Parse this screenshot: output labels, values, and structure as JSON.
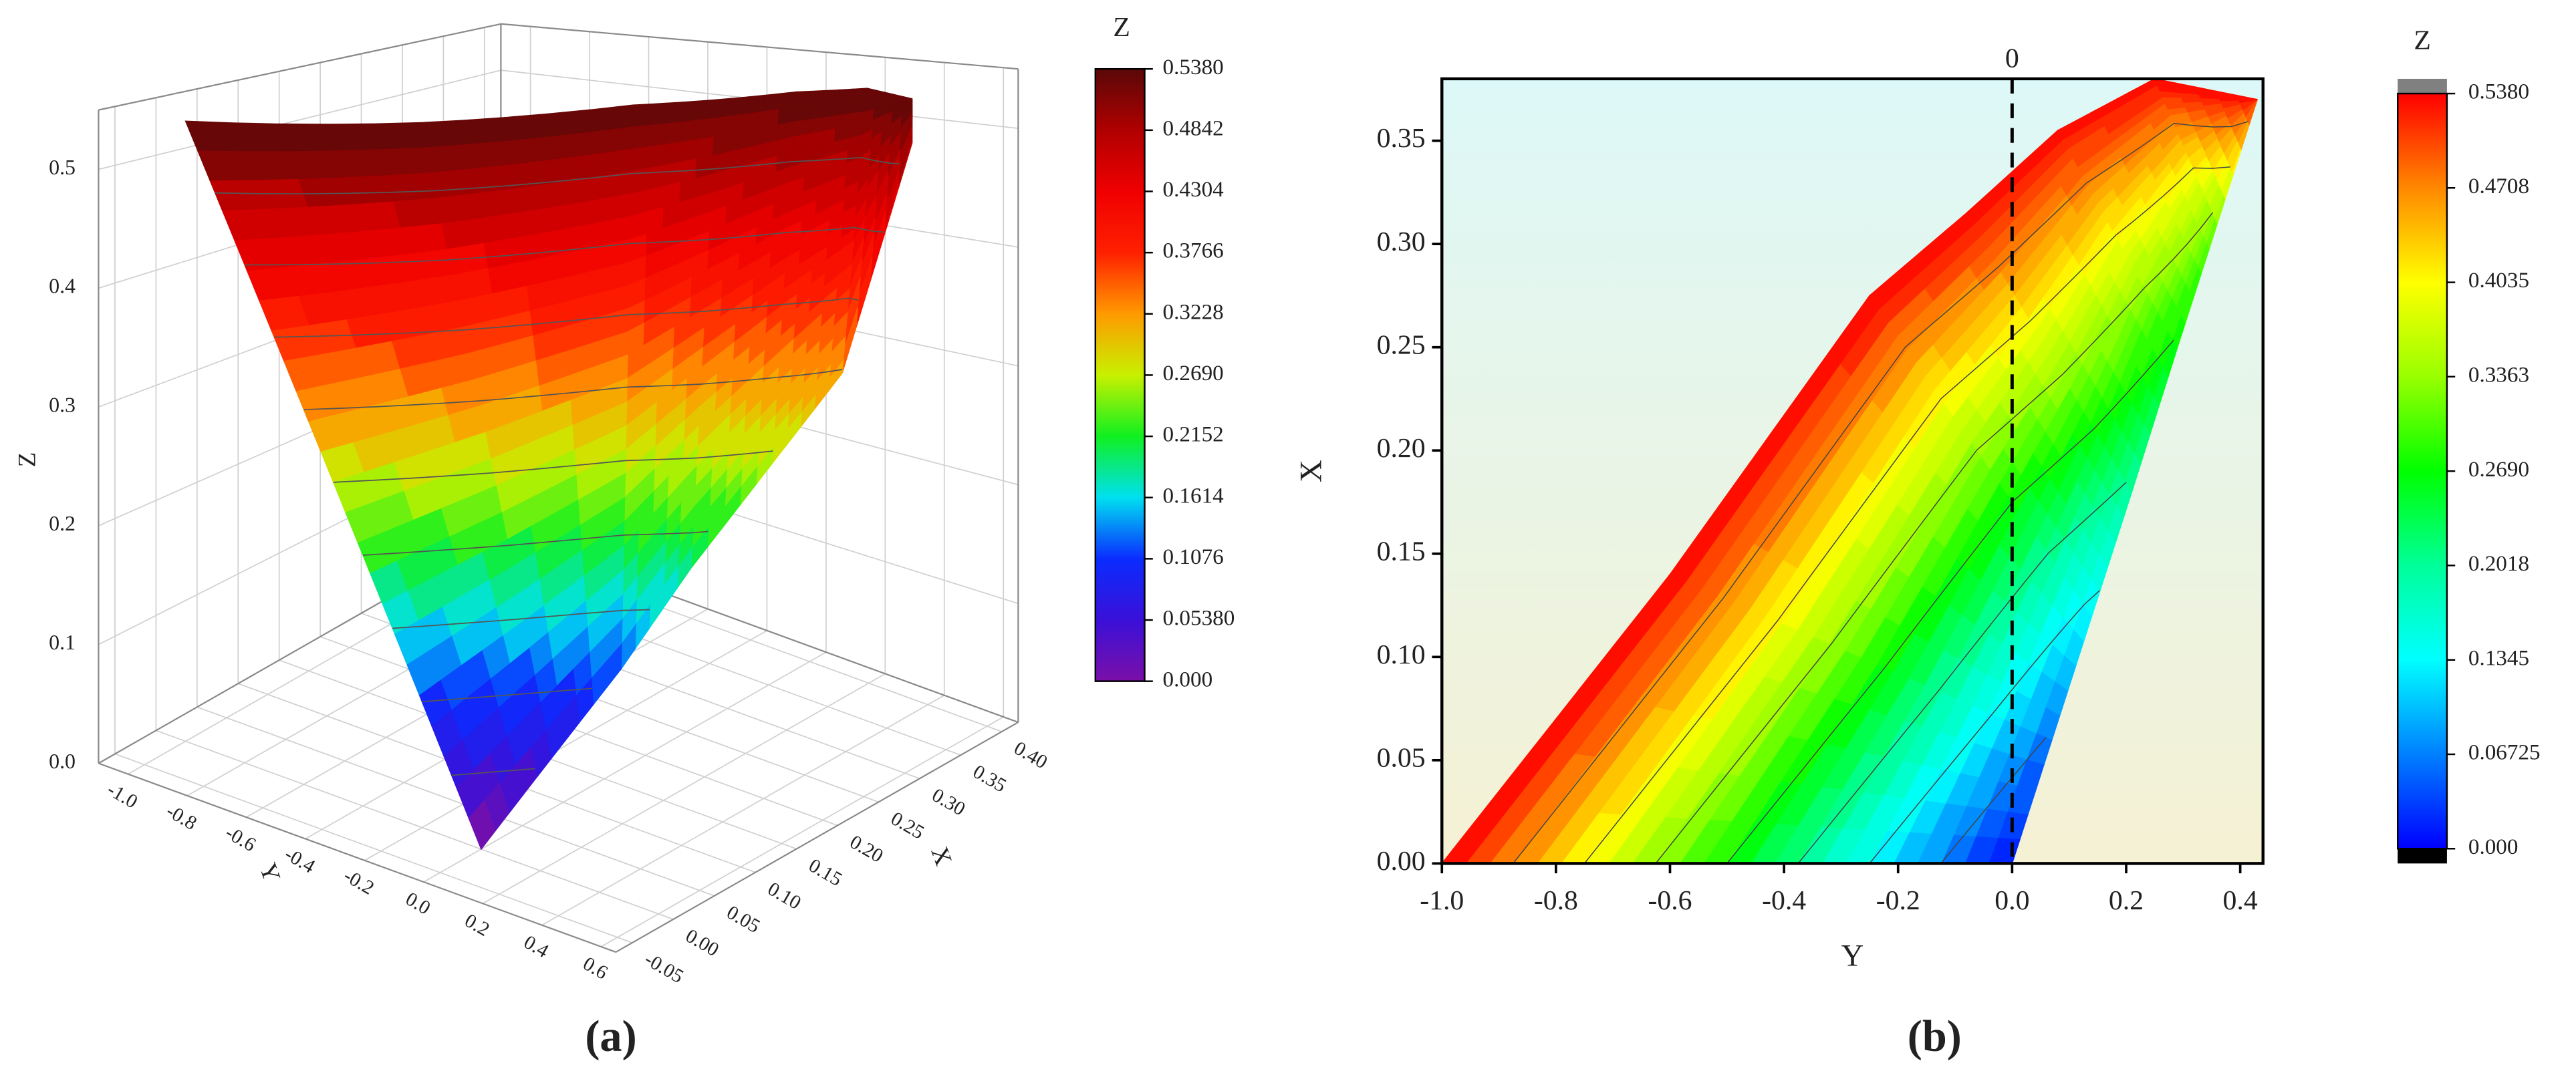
{
  "chart_data": [
    {
      "type": "surface3d",
      "panel_label": "(a)",
      "Y_axis": {
        "label": "Y",
        "lim": [
          -1.1,
          0.65
        ],
        "ticks": [
          {
            "value": -1.0,
            "label": "-1.0"
          },
          -0.8,
          -0.6,
          -0.4,
          -0.2,
          {
            "value": 0.0,
            "label": "0.0"
          },
          0.2,
          0.4,
          0.6
        ]
      },
      "X_axis": {
        "label": "X",
        "lim": [
          -0.07,
          0.42
        ],
        "ticks": [
          -0.05,
          {
            "value": 0.0,
            "label": "0.00"
          },
          0.05,
          {
            "value": 0.1,
            "label": "0.10"
          },
          0.15,
          {
            "value": 0.2,
            "label": "0.20"
          },
          0.25,
          {
            "value": 0.3,
            "label": "0.30"
          },
          0.35,
          {
            "value": 0.4,
            "label": "0.40"
          }
        ]
      },
      "Z_axis": {
        "label": "Z",
        "lim": [
          0,
          0.55
        ],
        "ticks": [
          {
            "value": 0.0,
            "label": "0.0"
          },
          0.1,
          0.2,
          0.3,
          0.4,
          0.5
        ]
      },
      "colorbar": {
        "title": "Z",
        "lim": [
          0,
          0.538
        ],
        "ticks": [
          {
            "value": 0,
            "label": "0.000"
          },
          {
            "value": 0.0538,
            "label": "0.05380"
          },
          0.1076,
          0.1614,
          0.2152,
          {
            "value": 0.269,
            "label": "0.2690"
          },
          0.3228,
          0.3766,
          0.4304,
          0.4842,
          {
            "value": 0.538,
            "label": "0.5380"
          }
        ],
        "colors": [
          "#7b0fa8",
          "#3a10d8",
          "#0a2cff",
          "#00e0f0",
          "#10f020",
          "#c8f000",
          "#ff9a00",
          "#ff2000",
          "#f00000",
          "#b00000",
          "#5a0808"
        ]
      },
      "surface": {
        "left_edge": {
          "Y": [
            -1.0,
            -0.6,
            -0.25,
            -0.08,
            0.08,
            0.25,
            0.43
          ],
          "X": [
            0,
            0.14,
            0.275,
            0.315,
            0.355,
            0.38,
            0.37
          ],
          "Z": [
            0.538,
            0.538,
            0.538,
            0.538,
            0.538,
            0.538,
            0.538
          ]
        },
        "right_edge": {
          "Y": [
            0,
            0.07,
            0.14,
            0.21,
            0.29,
            0.36,
            0.43
          ],
          "X": [
            0,
            0.06,
            0.12,
            0.18,
            0.25,
            0.31,
            0.37
          ],
          "Z": [
            0,
            0.06,
            0.12,
            0.19,
            0.26,
            0.32,
            0.5
          ]
        }
      }
    },
    {
      "type": "contour",
      "panel_label": "(b)",
      "Y_axis": {
        "label": "Y",
        "lim": [
          -1.0,
          0.44
        ],
        "ticks": [
          {
            "value": -1.0,
            "label": "-1.0"
          },
          -0.8,
          -0.6,
          -0.4,
          -0.2,
          {
            "value": 0.0,
            "label": "0.0"
          },
          0.2,
          0.4
        ]
      },
      "X_axis": {
        "label": "X",
        "lim": [
          0,
          0.38
        ],
        "ticks": [
          {
            "value": 0,
            "label": "0.00"
          },
          0.05,
          {
            "value": 0.1,
            "label": "0.10"
          },
          0.15,
          {
            "value": 0.2,
            "label": "0.20"
          },
          0.25,
          {
            "value": 0.3,
            "label": "0.30"
          },
          0.35
        ]
      },
      "reference_line": 0,
      "colorbar": {
        "title": "Z",
        "lim": [
          0,
          0.538
        ],
        "ticks": [
          {
            "value": 0,
            "label": "0.000"
          },
          0.06725,
          0.1345,
          0.2018,
          {
            "value": 0.269,
            "label": "0.2690"
          },
          0.3363,
          0.4035,
          0.4708,
          {
            "value": 0.538,
            "label": "0.5380"
          }
        ],
        "colors": [
          "#0000ff",
          "#0080ff",
          "#00ffff",
          "#00ff99",
          "#00ff00",
          "#99ff00",
          "#ffff00",
          "#ff8800",
          "#ff0000"
        ],
        "over_color": "#808080",
        "under_color": "#000000"
      },
      "surface": {
        "left_edge": {
          "Y": [
            -1.0,
            -0.6,
            -0.25,
            -0.08,
            0.08,
            0.25,
            0.43
          ],
          "X": [
            0,
            0.14,
            0.275,
            0.315,
            0.355,
            0.38,
            0.37
          ],
          "Z": [
            0.538,
            0.538,
            0.538,
            0.538,
            0.538,
            0.538,
            0.538
          ]
        },
        "right_edge": {
          "Y": [
            0,
            0.07,
            0.14,
            0.21,
            0.29,
            0.36,
            0.43
          ],
          "X": [
            0,
            0.06,
            0.12,
            0.18,
            0.25,
            0.31,
            0.37
          ],
          "Z": [
            0,
            0.06,
            0.12,
            0.19,
            0.26,
            0.32,
            0.5
          ]
        }
      }
    }
  ]
}
